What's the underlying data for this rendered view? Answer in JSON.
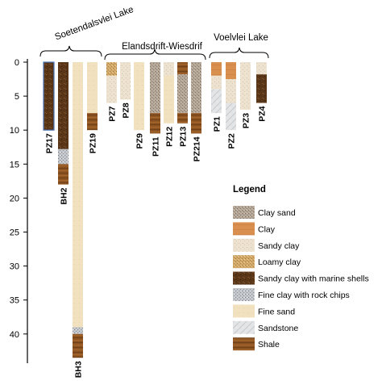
{
  "groups": [
    {
      "label": "Soetendalsvlei Lake"
    },
    {
      "label": "Elandsdrift-Wiesdrif"
    },
    {
      "label": "Voelvlei Lake"
    }
  ],
  "depth_axis": {
    "min": 0,
    "max": 44,
    "ticks": [
      "0",
      "5",
      "10",
      "15",
      "20",
      "25",
      "30",
      "35",
      "40"
    ]
  },
  "legend": {
    "title": "Legend",
    "items": [
      {
        "key": "clay_sand",
        "label": "Clay sand"
      },
      {
        "key": "clay",
        "label": "Clay"
      },
      {
        "key": "sandy_clay",
        "label": "Sandy clay"
      },
      {
        "key": "loamy_clay",
        "label": "Loamy clay"
      },
      {
        "key": "marine",
        "label": "Sandy clay with marine shells"
      },
      {
        "key": "rockchips",
        "label": "Fine clay with rock chips"
      },
      {
        "key": "fine_sand",
        "label": "Fine sand"
      },
      {
        "key": "sandstone",
        "label": "Sandstone"
      },
      {
        "key": "shale",
        "label": "Shale"
      }
    ]
  },
  "colors": {
    "clay_sand": "#a59687",
    "clay": "#d9904f",
    "sandy_clay": "#e9ddc8",
    "loamy_clay": "#d2a868",
    "marine": "#5a3619",
    "rockchips": "#b9bdc3",
    "fine_sand": "#f0dfbc",
    "sandstone": "#dadcdf",
    "shale": "#8e5422"
  },
  "wells": [
    {
      "name": "PZ17",
      "layers": [
        {
          "from": 0,
          "to": 10,
          "material": "marine"
        }
      ]
    },
    {
      "name": "BH2",
      "layers": [
        {
          "from": 0,
          "to": 12.8,
          "material": "marine"
        },
        {
          "from": 12.8,
          "to": 15,
          "material": "rockchips"
        },
        {
          "from": 15,
          "to": 18,
          "material": "shale"
        }
      ]
    },
    {
      "name": "BH3",
      "layers": [
        {
          "from": 0,
          "to": 39,
          "material": "fine_sand"
        },
        {
          "from": 39,
          "to": 40,
          "material": "rockchips"
        },
        {
          "from": 40,
          "to": 43.5,
          "material": "shale"
        }
      ]
    },
    {
      "name": "PZ19",
      "layers": [
        {
          "from": 0,
          "to": 7.5,
          "material": "fine_sand"
        },
        {
          "from": 7.5,
          "to": 10,
          "material": "shale"
        }
      ]
    },
    {
      "name": "PZ7",
      "layers": [
        {
          "from": 0,
          "to": 2,
          "material": "loamy_clay"
        },
        {
          "from": 2,
          "to": 6,
          "material": "sandy_clay"
        }
      ]
    },
    {
      "name": "PZ8",
      "layers": [
        {
          "from": 0,
          "to": 5.5,
          "material": "sandy_clay"
        }
      ]
    },
    {
      "name": "PZ9",
      "layers": [
        {
          "from": 0,
          "to": 10,
          "material": "fine_sand"
        }
      ]
    },
    {
      "name": "PZ11",
      "layers": [
        {
          "from": 0,
          "to": 7.5,
          "material": "clay_sand"
        },
        {
          "from": 7.5,
          "to": 10.5,
          "material": "shale"
        }
      ]
    },
    {
      "name": "PZ12",
      "layers": [
        {
          "from": 0,
          "to": 2,
          "material": "sandy_clay"
        },
        {
          "from": 2,
          "to": 9,
          "material": "fine_sand"
        }
      ]
    },
    {
      "name": "PZ13",
      "layers": [
        {
          "from": 0,
          "to": 1.8,
          "material": "shale"
        },
        {
          "from": 1.8,
          "to": 7.5,
          "material": "clay_sand"
        },
        {
          "from": 7.5,
          "to": 9,
          "material": "shale"
        }
      ]
    },
    {
      "name": "PZ214",
      "layers": [
        {
          "from": 0,
          "to": 7.5,
          "material": "clay_sand"
        },
        {
          "from": 7.5,
          "to": 10.5,
          "material": "shale"
        }
      ]
    },
    {
      "name": "PZ1",
      "layers": [
        {
          "from": 0,
          "to": 2,
          "material": "clay"
        },
        {
          "from": 2,
          "to": 4,
          "material": "sandy_clay"
        },
        {
          "from": 4,
          "to": 7.5,
          "material": "sandstone"
        }
      ]
    },
    {
      "name": "PZ2",
      "layers": [
        {
          "from": 0,
          "to": 2.5,
          "material": "clay"
        },
        {
          "from": 2.5,
          "to": 6,
          "material": "sandy_clay"
        },
        {
          "from": 6,
          "to": 10,
          "material": "sandstone"
        }
      ]
    },
    {
      "name": "PZ3",
      "layers": [
        {
          "from": 0,
          "to": 2,
          "material": "sandy_clay"
        },
        {
          "from": 2,
          "to": 7,
          "material": "sandy_clay"
        }
      ]
    },
    {
      "name": "PZ4",
      "layers": [
        {
          "from": 0,
          "to": 1.8,
          "material": "sandy_clay"
        },
        {
          "from": 1.8,
          "to": 6,
          "material": "marine"
        }
      ]
    }
  ]
}
